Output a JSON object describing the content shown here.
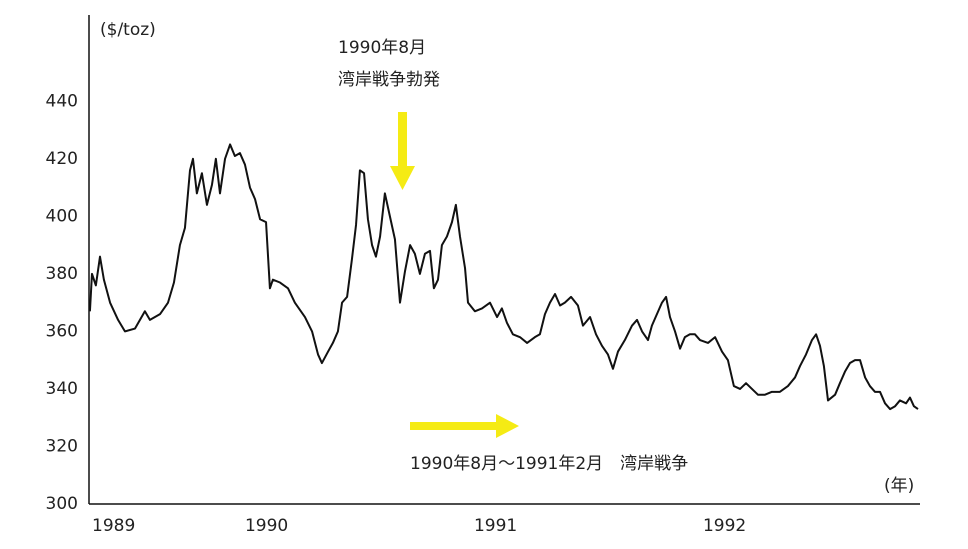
{
  "chart_data": {
    "type": "line",
    "y_label": "($/toz)",
    "x_label": "(年)",
    "annotations": [
      "1990年8月",
      "湾岸戦争勃発",
      "1990年8月〜1991年2月　湾岸戦争"
    ],
    "color": "#111111",
    "xlim": [
      1989.332,
      1992.952
    ],
    "xticks": [
      {
        "value": 1989.332,
        "label": "1989"
      },
      1990,
      1991,
      1992
    ],
    "ylim": [
      300,
      470
    ],
    "yticks": [
      300,
      320,
      340,
      360,
      380,
      400,
      420,
      440
    ],
    "grid": false,
    "x": [
      1989.336,
      1989.345,
      1989.362,
      1989.38,
      1989.397,
      1989.424,
      1989.459,
      1989.489,
      1989.533,
      1989.576,
      1989.598,
      1989.642,
      1989.677,
      1989.703,
      1989.729,
      1989.751,
      1989.773,
      1989.786,
      1989.803,
      1989.825,
      1989.847,
      1989.869,
      1989.886,
      1989.904,
      1989.926,
      1989.948,
      1989.969,
      1989.991,
      1990.013,
      1990.035,
      1990.057,
      1990.079,
      1990.105,
      1990.122,
      1990.135,
      1990.166,
      1990.201,
      1990.231,
      1990.275,
      1990.306,
      1990.332,
      1990.349,
      1990.376,
      1990.397,
      1990.419,
      1990.437,
      1990.459,
      1990.48,
      1990.498,
      1990.515,
      1990.533,
      1990.55,
      1990.568,
      1990.585,
      1990.603,
      1990.624,
      1990.646,
      1990.668,
      1990.69,
      1990.712,
      1990.734,
      1990.755,
      1990.777,
      1990.799,
      1990.821,
      1990.838,
      1990.856,
      1990.873,
      1990.895,
      1990.917,
      1990.934,
      1990.952,
      1990.974,
      1990.987,
      1991.017,
      1991.048,
      1991.083,
      1991.114,
      1991.135,
      1991.157,
      1991.183,
      1991.214,
      1991.245,
      1991.279,
      1991.301,
      1991.323,
      1991.345,
      1991.367,
      1991.389,
      1991.41,
      1991.437,
      1991.467,
      1991.489,
      1991.52,
      1991.546,
      1991.572,
      1991.598,
      1991.62,
      1991.642,
      1991.672,
      1991.703,
      1991.725,
      1991.747,
      1991.773,
      1991.79,
      1991.812,
      1991.834,
      1991.852,
      1991.869,
      1991.891,
      1991.913,
      1991.934,
      1991.956,
      1991.978,
      1992.0,
      1992.035,
      1992.066,
      1992.096,
      1992.122,
      1992.148,
      1992.175,
      1992.201,
      1992.227,
      1992.253,
      1992.284,
      1992.314,
      1992.349,
      1992.384,
      1992.415,
      1992.437,
      1992.463,
      1992.489,
      1992.507,
      1992.524,
      1992.541,
      1992.559,
      1992.59,
      1992.611,
      1992.633,
      1992.655,
      1992.677,
      1992.699,
      1992.721,
      1992.742,
      1992.764,
      1992.786,
      1992.808,
      1992.83,
      1992.852,
      1992.873,
      1992.9,
      1992.917,
      1992.934,
      1992.952
    ],
    "values": [
      367,
      380,
      376,
      386,
      378,
      370,
      364,
      360,
      361,
      367,
      364,
      366,
      370,
      377,
      390,
      396,
      416,
      420,
      408,
      415,
      404,
      411,
      420,
      408,
      420,
      425,
      421,
      422,
      418,
      410,
      406,
      399,
      398,
      375,
      378,
      377,
      375,
      370,
      365,
      360,
      352,
      349,
      353,
      356,
      360,
      370,
      372,
      385,
      397,
      416,
      415,
      399,
      390,
      386,
      393,
      408,
      400,
      392,
      370,
      381,
      390,
      387,
      380,
      387,
      388,
      375,
      378,
      390,
      393,
      398,
      404,
      393,
      382,
      370,
      367,
      368,
      370,
      365,
      368,
      363,
      359,
      358,
      356,
      358,
      359,
      366,
      370,
      373,
      369,
      370,
      372,
      369,
      362,
      365,
      359,
      355,
      352,
      347,
      353,
      357,
      362,
      364,
      360,
      357,
      362,
      366,
      370,
      372,
      365,
      360,
      354,
      358,
      359,
      359,
      357,
      356,
      358,
      353,
      350,
      341,
      340,
      342,
      340,
      338,
      338,
      339,
      339,
      341,
      344,
      348,
      352,
      357,
      359,
      355,
      348,
      336,
      338,
      342,
      346,
      349,
      350,
      350,
      344,
      341,
      339,
      339,
      335,
      333,
      334,
      336,
      335,
      337,
      334,
      333
    ]
  }
}
